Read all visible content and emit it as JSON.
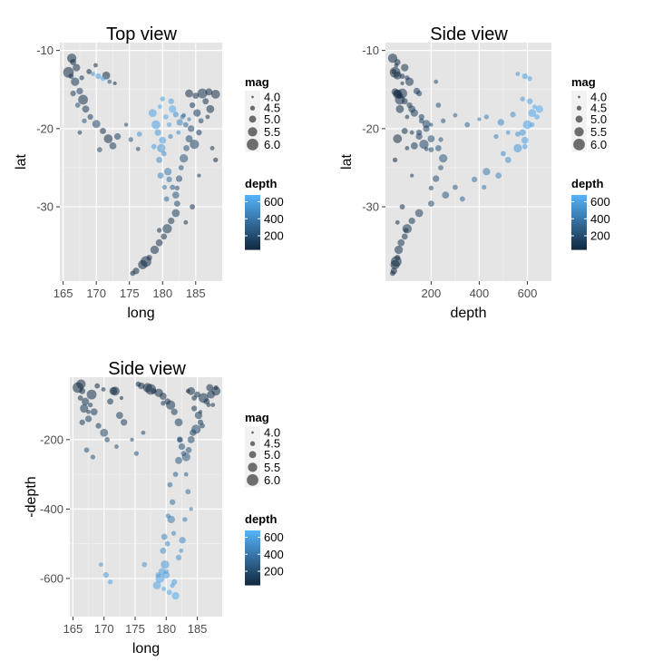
{
  "colors": {
    "panel_bg": "#E5E5E5",
    "grid_major": "#FFFFFF",
    "grid_minor": "#F2F2F2",
    "tick_label": "#4D4D4D",
    "depth_low": "#132B43",
    "depth_high": "#56B1F7",
    "point_alpha": 0.55
  },
  "chart_data": [
    {
      "type": "scatter",
      "title": "Top view",
      "xlabel": "long",
      "ylabel": "lat",
      "xlim": [
        164.5,
        189
      ],
      "ylim": [
        -39.5,
        -9
      ],
      "xticks": [
        165,
        170,
        175,
        180,
        185
      ],
      "xtick_labels": [
        "165",
        "170",
        "175",
        "180",
        "185"
      ],
      "yticks": [
        -10,
        -20,
        -30
      ],
      "ytick_labels": [
        "-10",
        "-20",
        "-30"
      ],
      "x_field": "long",
      "y_field": "lat",
      "size_field": "mag",
      "color_field": "depth",
      "grid": true,
      "legend_position": "right"
    },
    {
      "type": "scatter",
      "title": "Side view",
      "xlabel": "depth",
      "ylabel": "lat",
      "xlim": [
        10,
        700
      ],
      "ylim": [
        -39.5,
        -9
      ],
      "xticks": [
        200,
        400,
        600
      ],
      "xtick_labels": [
        "200",
        "400",
        "600"
      ],
      "yticks": [
        -10,
        -20,
        -30
      ],
      "ytick_labels": [
        "-10",
        "-20",
        "-30"
      ],
      "x_field": "depth",
      "y_field": "lat",
      "size_field": "mag",
      "color_field": "depth",
      "grid": true,
      "legend_position": "right"
    },
    {
      "type": "scatter",
      "title": "Side view",
      "xlabel": "long",
      "ylabel": "-depth",
      "xlim": [
        164.5,
        189
      ],
      "ylim": [
        -710,
        -20
      ],
      "xticks": [
        165,
        170,
        175,
        180,
        185
      ],
      "xtick_labels": [
        "165",
        "170",
        "175",
        "180",
        "185"
      ],
      "yticks": [
        -200,
        -400,
        -600
      ],
      "ytick_labels": [
        "-200",
        "-400",
        "-600"
      ],
      "x_field": "long",
      "y_field": "-depth",
      "size_field": "mag",
      "color_field": "depth",
      "grid": true,
      "legend_position": "right"
    }
  ],
  "quakes_points": [
    [
      166.5,
      -11.5,
      60,
      4.8
    ],
    [
      167,
      -12.2,
      90,
      5.1
    ],
    [
      166.2,
      -13.3,
      80,
      4.6
    ],
    [
      166.8,
      -14,
      110,
      5.3
    ],
    [
      167.5,
      -15.2,
      140,
      4.9
    ],
    [
      168,
      -16.3,
      70,
      5.6
    ],
    [
      168.4,
      -17.5,
      120,
      5
    ],
    [
      169.1,
      -18.5,
      160,
      4.7
    ],
    [
      170,
      -19.4,
      180,
      5.2
    ],
    [
      171,
      -20.3,
      90,
      4.8
    ],
    [
      171.8,
      -21.3,
      60,
      5.4
    ],
    [
      172.5,
      -22.2,
      130,
      5
    ],
    [
      170.5,
      -22.7,
      200,
      4.6
    ],
    [
      173.2,
      -21,
      150,
      4.9
    ],
    [
      165.8,
      -12.8,
      50,
      5.8
    ],
    [
      166.3,
      -11,
      40,
      5.5
    ],
    [
      167.8,
      -13.5,
      100,
      4.5
    ],
    [
      172,
      -14,
      220,
      4.4
    ],
    [
      171.5,
      -13.2,
      60,
      5.2
    ],
    [
      172.8,
      -14.2,
      80,
      4.3
    ],
    [
      169.5,
      -13,
      560,
      4.4
    ],
    [
      170.3,
      -13.3,
      590,
      4.7
    ],
    [
      171,
      -13.6,
      610,
      4.5
    ],
    [
      178.5,
      -18,
      620,
      5.2
    ],
    [
      179,
      -19.5,
      600,
      5.4
    ],
    [
      179.3,
      -20.5,
      580,
      4.9
    ],
    [
      180,
      -21.5,
      590,
      5
    ],
    [
      180.5,
      -18.5,
      640,
      4.6
    ],
    [
      181,
      -19.5,
      620,
      4.5
    ],
    [
      181.5,
      -17.5,
      650,
      5.1
    ],
    [
      182,
      -18.2,
      540,
      4.7
    ],
    [
      179.8,
      -22.5,
      560,
      5.3
    ],
    [
      179.5,
      -24,
      520,
      4.8
    ],
    [
      180.2,
      -23.2,
      500,
      4.6
    ],
    [
      181.2,
      -21,
      470,
      4.5
    ],
    [
      182.4,
      -20.5,
      520,
      4.4
    ],
    [
      182.6,
      -19.2,
      490,
      4.9
    ],
    [
      183,
      -18.5,
      430,
      4.5
    ],
    [
      180.8,
      -25.5,
      430,
      5.1
    ],
    [
      181,
      -26.5,
      380,
      4.7
    ],
    [
      181.5,
      -27.5,
      300,
      4.6
    ],
    [
      182,
      -28.5,
      260,
      5
    ],
    [
      182.2,
      -29.6,
      200,
      4.8
    ],
    [
      182,
      -30.8,
      150,
      5.2
    ],
    [
      181.3,
      -31.8,
      120,
      4.9
    ],
    [
      180.7,
      -32.8,
      100,
      5.5
    ],
    [
      180.2,
      -33.8,
      90,
      4.8
    ],
    [
      179.5,
      -34.6,
      75,
      5
    ],
    [
      178.8,
      -35.5,
      65,
      5.3
    ],
    [
      178,
      -36.5,
      60,
      4.7
    ],
    [
      177,
      -37.4,
      50,
      5.5
    ],
    [
      176,
      -38.2,
      45,
      4.9
    ],
    [
      175.5,
      -38.5,
      40,
      4.6
    ],
    [
      177.5,
      -37,
      55,
      5.8
    ],
    [
      179.5,
      -33,
      95,
      4.5
    ],
    [
      184,
      -15.5,
      60,
      5.2
    ],
    [
      185,
      -15.8,
      70,
      4.8
    ],
    [
      186,
      -15.5,
      80,
      5.6
    ],
    [
      187,
      -15.3,
      50,
      5
    ],
    [
      188,
      -15.6,
      60,
      5.4
    ],
    [
      184.5,
      -17,
      110,
      4.7
    ],
    [
      185.2,
      -18,
      130,
      5.1
    ],
    [
      185.8,
      -19,
      160,
      4.6
    ],
    [
      184.3,
      -20,
      180,
      4.9
    ],
    [
      184,
      -21.3,
      200,
      5
    ],
    [
      183.6,
      -22.5,
      230,
      4.8
    ],
    [
      183.2,
      -23.8,
      250,
      5.3
    ],
    [
      182.8,
      -25,
      240,
      4.6
    ],
    [
      182.5,
      -26.4,
      220,
      4.9
    ],
    [
      182.2,
      -27.6,
      200,
      4.5
    ],
    [
      186.5,
      -16.5,
      90,
      4.8
    ],
    [
      187.2,
      -17.5,
      70,
      5.2
    ],
    [
      186.8,
      -18.5,
      100,
      4.4
    ],
    [
      185.5,
      -20.5,
      150,
      4.7
    ],
    [
      184.8,
      -22,
      170,
      5.5
    ],
    [
      183.2,
      -18.3,
      300,
      4.4
    ],
    [
      183.5,
      -19.5,
      350,
      4.6
    ],
    [
      184,
      -18.8,
      400,
      4.3
    ],
    [
      180,
      -16.2,
      580,
      4.5
    ],
    [
      181.3,
      -16.5,
      610,
      4.7
    ],
    [
      179.6,
      -17.2,
      630,
      4.4
    ],
    [
      178.7,
      -22.3,
      590,
      4.6
    ],
    [
      179.7,
      -26,
      480,
      4.8
    ],
    [
      180.3,
      -27.5,
      420,
      4.5
    ],
    [
      180.6,
      -29,
      330,
      4.6
    ],
    [
      187.5,
      -22.5,
      100,
      4.4
    ],
    [
      188,
      -24,
      50,
      4.5
    ],
    [
      185.5,
      -26,
      120,
      4.3
    ],
    [
      184.5,
      -30,
      80,
      4.6
    ],
    [
      183.5,
      -32,
      60,
      4.4
    ],
    [
      167.2,
      -17,
      230,
      4.6
    ],
    [
      168.2,
      -19,
      250,
      4.5
    ],
    [
      166.5,
      -15.5,
      150,
      4.7
    ],
    [
      167.5,
      -20.5,
      120,
      4.4
    ],
    [
      174.5,
      -19.5,
      200,
      4.3
    ],
    [
      168.9,
      -12.7,
      45,
      4.6
    ],
    [
      169.9,
      -11.9,
      55,
      4.4
    ],
    [
      175.2,
      -21.4,
      240,
      4.5
    ],
    [
      176.3,
      -22.6,
      180,
      4.4
    ],
    [
      176.5,
      -20.7,
      560,
      4.6
    ]
  ],
  "legend": {
    "mag_title": "mag",
    "mag_labels": [
      "4.0",
      "4.5",
      "5.0",
      "5.5",
      "6.0"
    ],
    "mag_values": [
      4.0,
      4.5,
      5.0,
      5.5,
      6.0
    ],
    "depth_title": "depth",
    "depth_labels": [
      "600",
      "400",
      "200"
    ],
    "depth_values": [
      600,
      400,
      200
    ],
    "depth_range": [
      40,
      680
    ]
  }
}
